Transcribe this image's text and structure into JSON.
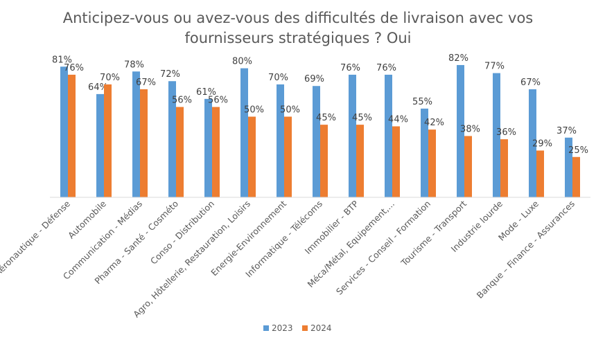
{
  "chart_data": {
    "type": "bar",
    "title_line1": "Anticipez-vous ou avez-vous des difficultés de livraison avec vos",
    "title_line2": "fournisseurs stratégiques ? Oui",
    "categories": [
      "Aéronautique - Défense",
      "Automobile",
      "Communication - Médias",
      "Pharma - Santé - Cosméto",
      "Conso - Distribution",
      "Agro, Hôtellerie, Restauration, Loisirs",
      "Energie-Environnement",
      "Informatique - Télécoms",
      "Immobilier - BTP",
      "Méca/Métal, Equipement,...",
      "Services - Conseil - Formation",
      "Tourisme - Transport",
      "Industrie lourde",
      "Mode - Luxe",
      "Banque – Finance - Assurances"
    ],
    "series": [
      {
        "name": "2023",
        "color": "#5B9BD5",
        "values": [
          81,
          64,
          78,
          72,
          61,
          80,
          70,
          69,
          76,
          76,
          55,
          82,
          77,
          67,
          37
        ],
        "labels": [
          "81%",
          "64%",
          "78%",
          "72%",
          "61%",
          "80%",
          "70%",
          "69%",
          "76%",
          "76%",
          "55%",
          "82%",
          "77%",
          "67%",
          "37%"
        ]
      },
      {
        "name": "2024",
        "color": "#ED7D31",
        "values": [
          76,
          70,
          67,
          56,
          56,
          50,
          50,
          45,
          45,
          44,
          42,
          38,
          36,
          29,
          25
        ],
        "labels": [
          "76%",
          "70%",
          "67%",
          "56%",
          "56%",
          "50%",
          "50%",
          "45%",
          "45%",
          "44%",
          "42%",
          "38%",
          "36%",
          "29%",
          "25%"
        ]
      }
    ],
    "ylim": [
      0,
      100
    ],
    "grid": false,
    "legend_position": "bottom"
  }
}
